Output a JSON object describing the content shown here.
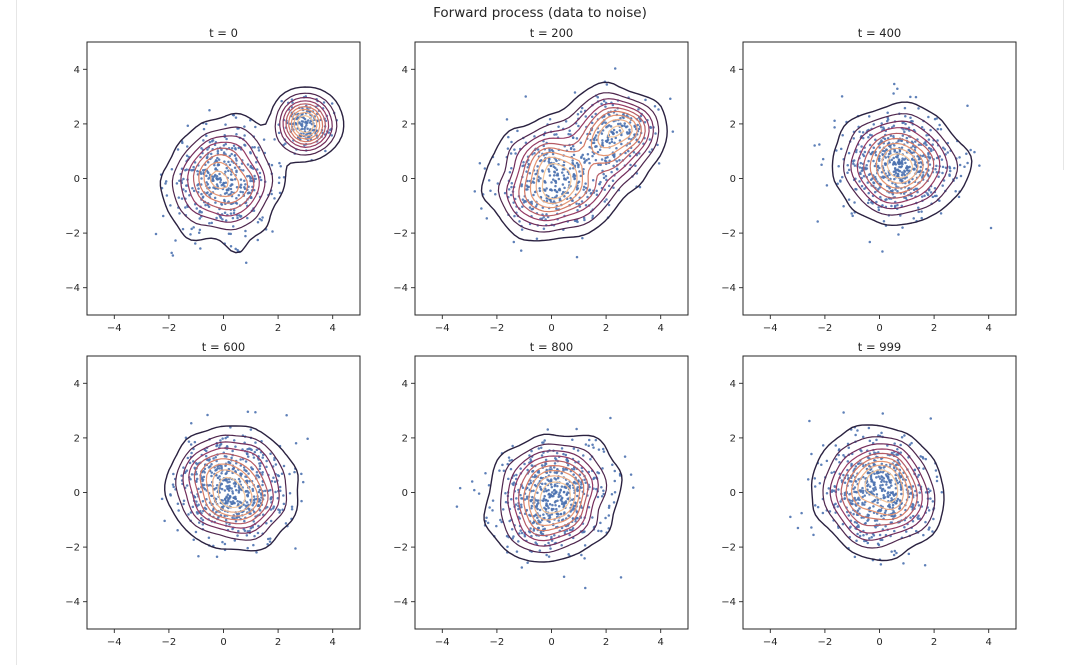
{
  "figure": {
    "suptitle": "Forward process (data to noise)"
  },
  "colors": {
    "points": "#4c72b0",
    "contour_outer": "#2a2140",
    "contour_mid": "#8a2f63",
    "contour_inner": "#e08464",
    "contour_core": "#f3c69b"
  },
  "chart_data": [
    {
      "type": "scatter",
      "title": "t = 0",
      "xlim": [
        -5,
        5
      ],
      "ylim": [
        -5,
        5
      ],
      "xticks": [
        -4,
        -2,
        0,
        2,
        4
      ],
      "yticks": [
        -4,
        -2,
        0,
        2,
        4
      ],
      "grid": false,
      "overlay": "kde-contour",
      "components": [
        {
          "mean": [
            0.0,
            -0.1
          ],
          "std": [
            0.95,
            0.95
          ],
          "n": 420
        },
        {
          "mean": [
            3.0,
            2.0
          ],
          "std": [
            0.45,
            0.45
          ],
          "n": 170
        }
      ]
    },
    {
      "type": "scatter",
      "title": "t = 200",
      "xlim": [
        -5,
        5
      ],
      "ylim": [
        -5,
        5
      ],
      "xticks": [
        -4,
        -2,
        0,
        2,
        4
      ],
      "yticks": [
        -4,
        -2,
        0,
        2,
        4
      ],
      "grid": false,
      "overlay": "kde-contour",
      "components": [
        {
          "mean": [
            0.1,
            0.0
          ],
          "std": [
            1.0,
            0.95
          ],
          "n": 400
        },
        {
          "mean": [
            2.4,
            1.6
          ],
          "std": [
            0.75,
            0.75
          ],
          "n": 220
        }
      ]
    },
    {
      "type": "scatter",
      "title": "t = 400",
      "xlim": [
        -5,
        5
      ],
      "ylim": [
        -5,
        5
      ],
      "xticks": [
        -4,
        -2,
        0,
        2,
        4
      ],
      "yticks": [
        -4,
        -2,
        0,
        2,
        4
      ],
      "grid": false,
      "overlay": "kde-contour",
      "components": [
        {
          "mean": [
            0.7,
            0.45
          ],
          "std": [
            1.05,
            0.95
          ],
          "n": 600
        }
      ]
    },
    {
      "type": "scatter",
      "title": "t = 600",
      "xlim": [
        -5,
        5
      ],
      "ylim": [
        -5,
        5
      ],
      "xticks": [
        -4,
        -2,
        0,
        2,
        4
      ],
      "yticks": [
        -4,
        -2,
        0,
        2,
        4
      ],
      "grid": false,
      "overlay": "kde-contour",
      "components": [
        {
          "mean": [
            0.3,
            0.2
          ],
          "std": [
            0.95,
            0.95
          ],
          "n": 600
        }
      ]
    },
    {
      "type": "scatter",
      "title": "t = 800",
      "xlim": [
        -5,
        5
      ],
      "ylim": [
        -5,
        5
      ],
      "xticks": [
        -4,
        -2,
        0,
        2,
        4
      ],
      "yticks": [
        -4,
        -2,
        0,
        2,
        4
      ],
      "grid": false,
      "overlay": "kde-contour",
      "components": [
        {
          "mean": [
            0.05,
            -0.15
          ],
          "std": [
            1.0,
            1.0
          ],
          "n": 600
        }
      ]
    },
    {
      "type": "scatter",
      "title": "t = 999",
      "xlim": [
        -5,
        5
      ],
      "ylim": [
        -5,
        5
      ],
      "xticks": [
        -4,
        -2,
        0,
        2,
        4
      ],
      "yticks": [
        -4,
        -2,
        0,
        2,
        4
      ],
      "grid": false,
      "overlay": "kde-contour",
      "components": [
        {
          "mean": [
            0.0,
            0.05
          ],
          "std": [
            1.0,
            1.0
          ],
          "n": 600
        }
      ]
    }
  ]
}
